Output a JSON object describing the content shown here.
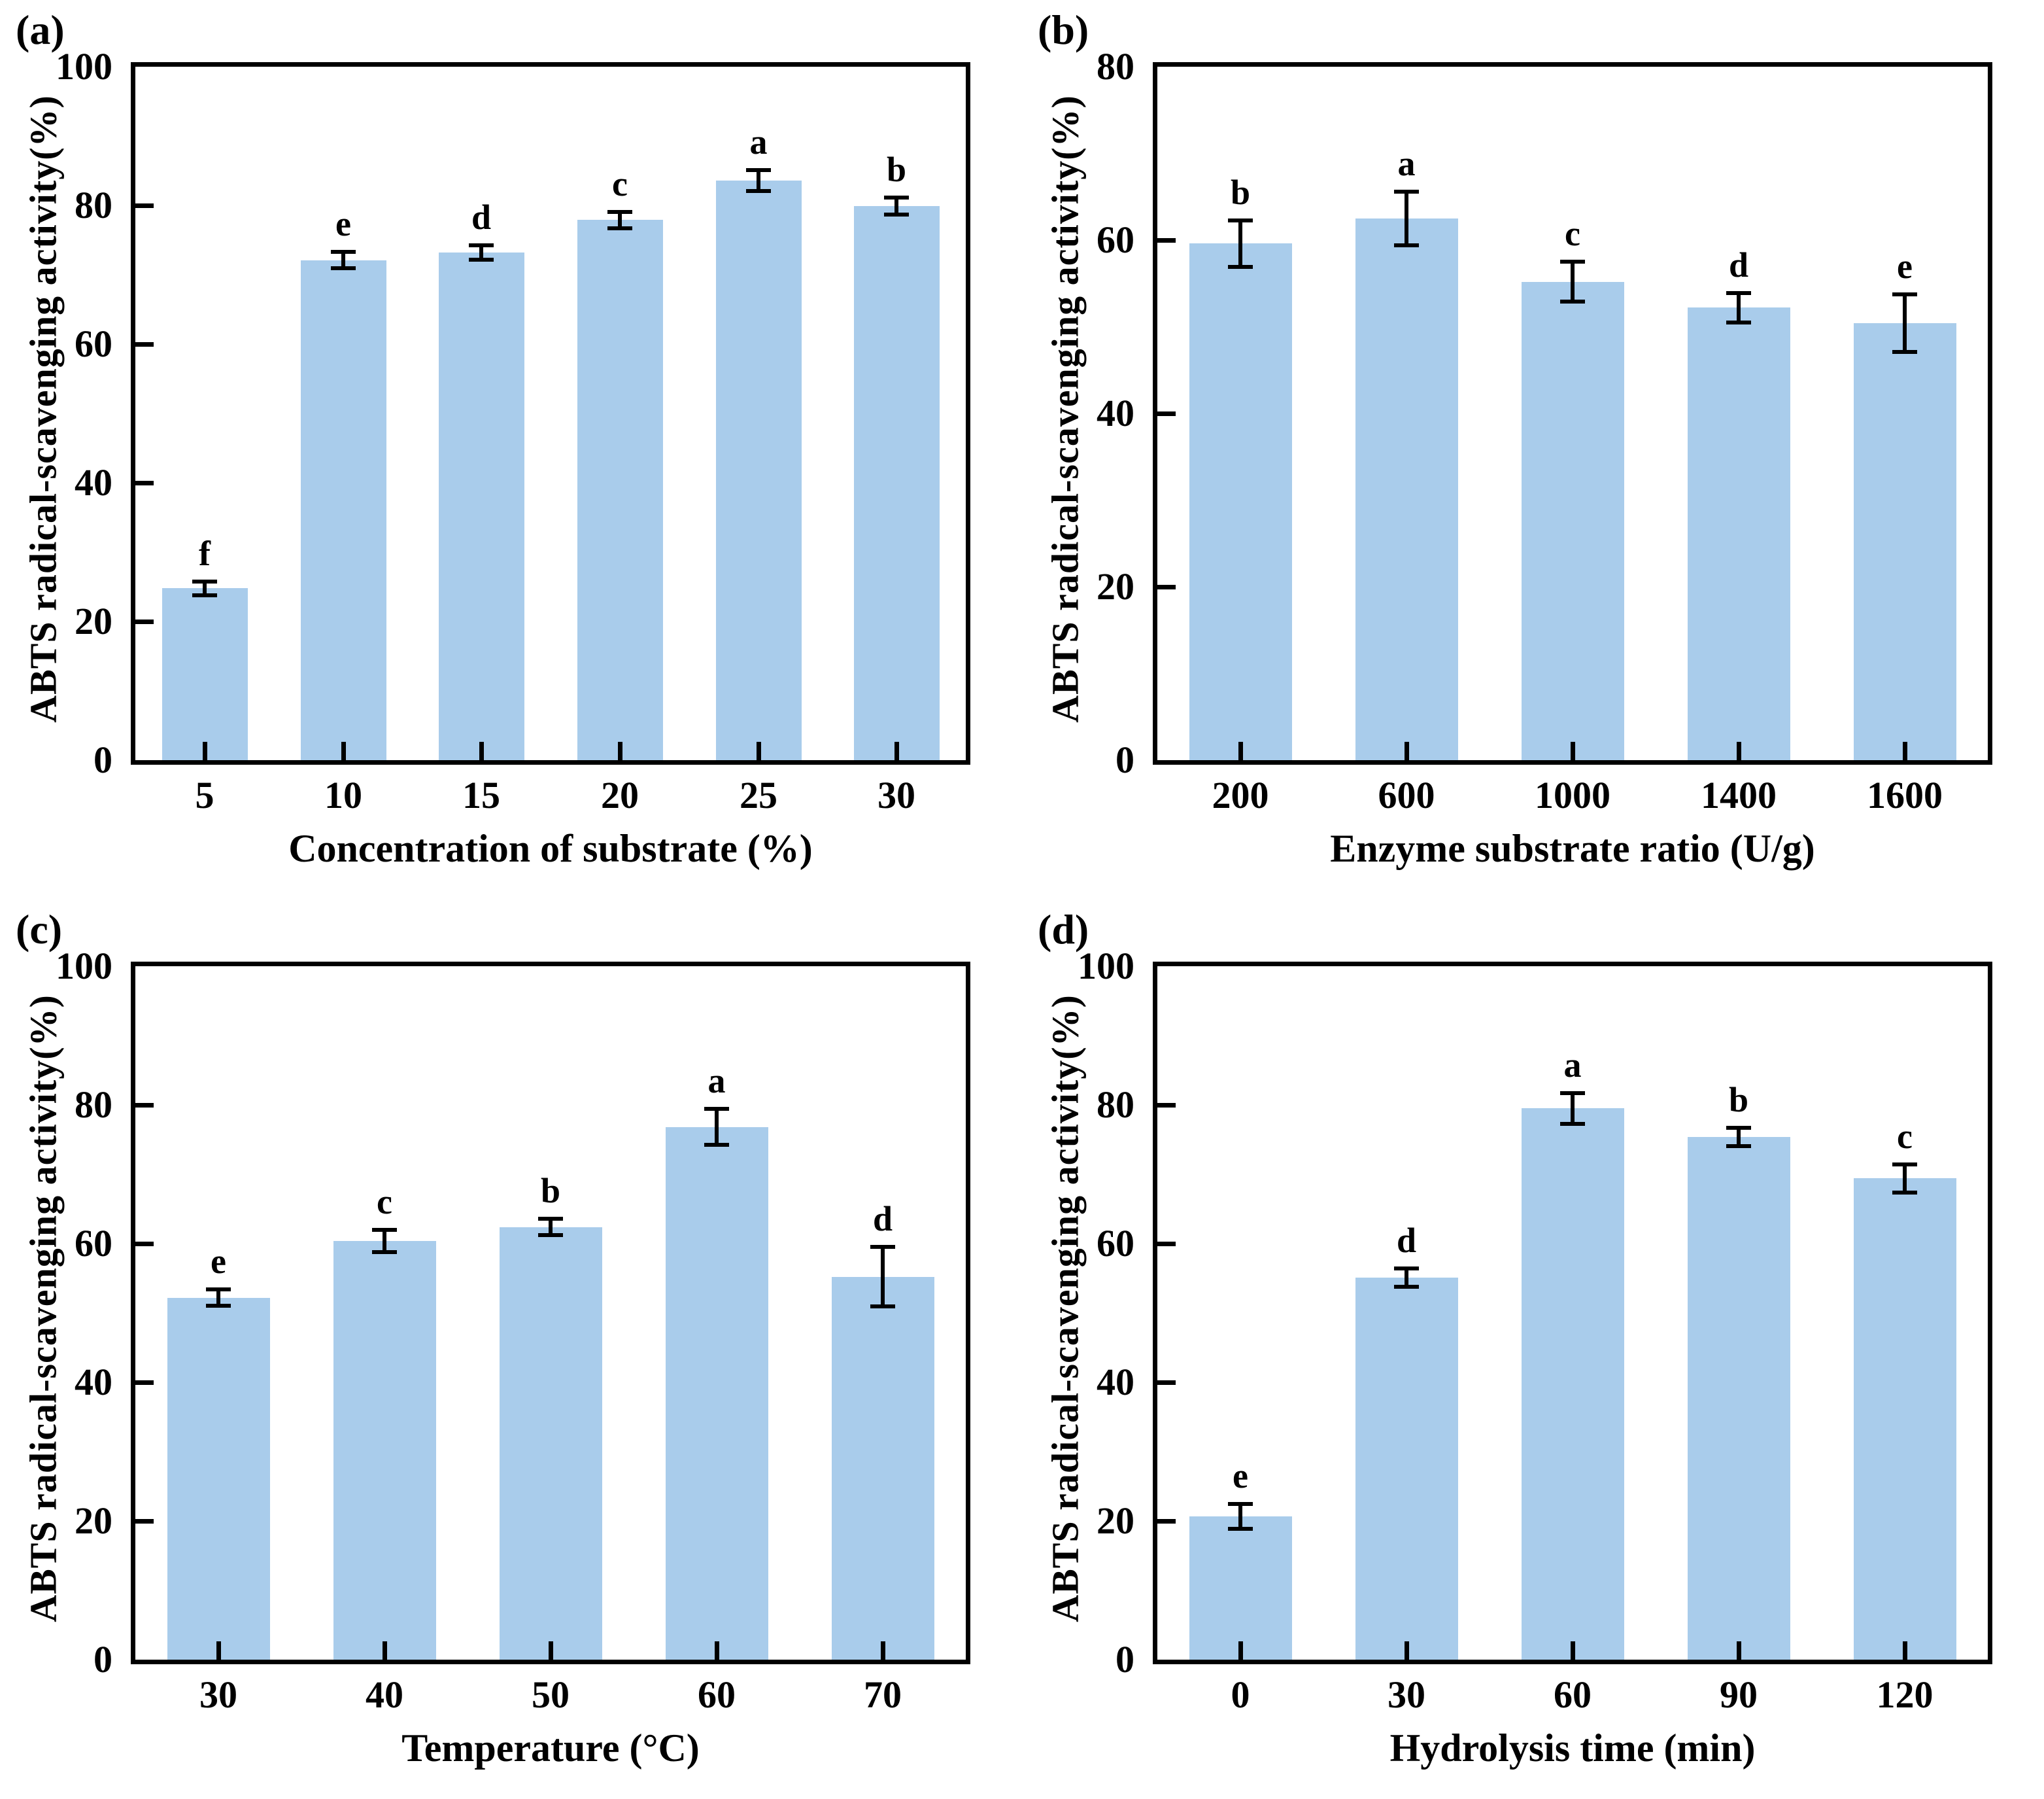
{
  "figure": {
    "background": "#ffffff",
    "bar_color": "#a9cceb",
    "axis_color": "#000000",
    "error_bar_color": "#000000"
  },
  "chart_data": [
    {
      "type": "bar",
      "panel_label": "(a)",
      "xlabel": "Concentration of substrate (%)",
      "ylabel": "ABTS radical-scavenging activity(%)",
      "ylim": [
        0,
        100
      ],
      "yticks": [
        0,
        20,
        40,
        60,
        80,
        100
      ],
      "grid": false,
      "legend": null,
      "categories": [
        "5",
        "10",
        "15",
        "20",
        "25",
        "30"
      ],
      "values": [
        24.8,
        72.1,
        73.2,
        77.9,
        83.6,
        79.9
      ],
      "errors": [
        1.0,
        1.2,
        1.0,
        1.2,
        1.5,
        1.2
      ],
      "point_labels": [
        "f",
        "e",
        "d",
        "c",
        "a",
        "b"
      ]
    },
    {
      "type": "bar",
      "panel_label": "(b)",
      "xlabel": "Enzyme substrate ratio (U/g)",
      "ylabel": "ABTS radical-scavenging activity(%)",
      "ylim": [
        0,
        80
      ],
      "yticks": [
        0,
        20,
        40,
        60,
        80
      ],
      "grid": false,
      "legend": null,
      "categories": [
        "200",
        "600",
        "1000",
        "1400",
        "1600"
      ],
      "values": [
        59.6,
        62.5,
        55.2,
        52.2,
        50.4
      ],
      "errors": [
        2.7,
        3.1,
        2.3,
        1.7,
        3.3
      ],
      "point_labels": [
        "b",
        "a",
        "c",
        "d",
        "e"
      ]
    },
    {
      "type": "bar",
      "panel_label": "(c)",
      "xlabel": "Temperature (°C)",
      "ylabel": "ABTS radical-scavenging activity(%)",
      "ylim": [
        0,
        100
      ],
      "yticks": [
        0,
        20,
        40,
        60,
        80,
        100
      ],
      "grid": false,
      "legend": null,
      "categories": [
        "30",
        "40",
        "50",
        "60",
        "70"
      ],
      "values": [
        52.2,
        60.4,
        62.4,
        76.8,
        55.2
      ],
      "errors": [
        1.2,
        1.6,
        1.2,
        2.6,
        4.3
      ],
      "point_labels": [
        "e",
        "c",
        "b",
        "a",
        "d"
      ]
    },
    {
      "type": "bar",
      "panel_label": "(d)",
      "xlabel": "Hydrolysis time (min)",
      "ylabel": "ABTS radical-scavenging activity(%)",
      "ylim": [
        0,
        100
      ],
      "yticks": [
        0,
        20,
        40,
        60,
        80,
        100
      ],
      "grid": false,
      "legend": null,
      "categories": [
        "0",
        "30",
        "60",
        "90",
        "120"
      ],
      "values": [
        20.7,
        55.1,
        79.5,
        75.4,
        69.4
      ],
      "errors": [
        1.8,
        1.3,
        2.2,
        1.3,
        2.0
      ],
      "point_labels": [
        "e",
        "d",
        "a",
        "b",
        "c"
      ]
    }
  ]
}
